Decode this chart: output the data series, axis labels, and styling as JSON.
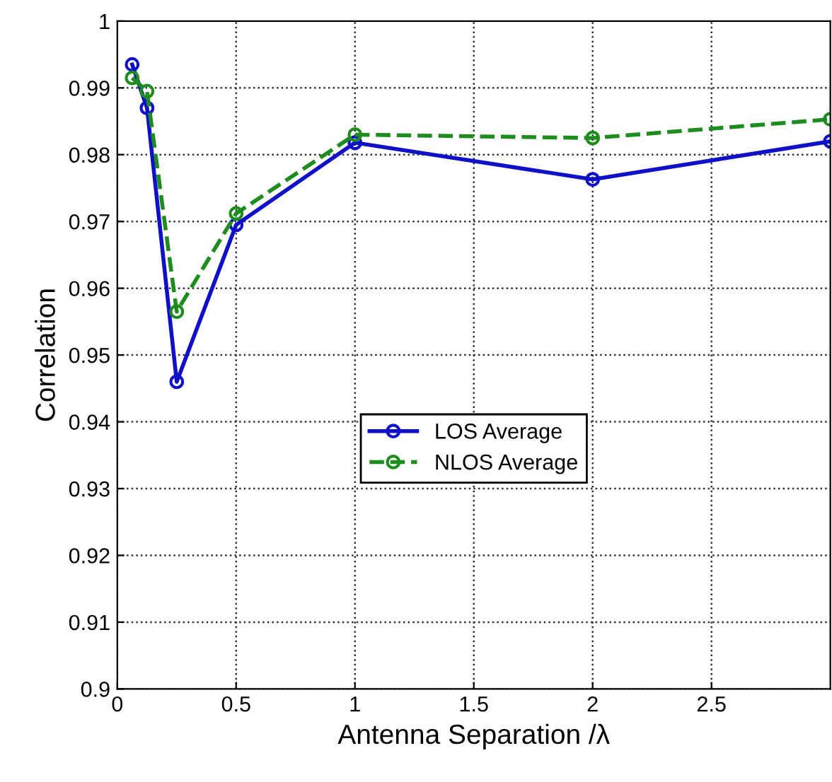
{
  "chart_data": {
    "type": "line",
    "xlabel": "Antenna Separation /λ",
    "ylabel": "Correlation",
    "x": [
      0.0625,
      0.125,
      0.25,
      0.5,
      1,
      2,
      3
    ],
    "series": [
      {
        "name": "LOS Average",
        "color": "#1010c8",
        "line_style": "solid",
        "values": [
          0.9935,
          0.987,
          0.946,
          0.9695,
          0.9818,
          0.9763,
          0.982
        ]
      },
      {
        "name": "NLOS Average",
        "color": "#1e8c1e",
        "line_style": "dashed",
        "values": [
          0.9915,
          0.9895,
          0.9565,
          0.9712,
          0.983,
          0.9825,
          0.9853
        ]
      }
    ],
    "xlim": [
      0,
      3
    ],
    "xticks": [
      0,
      0.5,
      1,
      1.5,
      2,
      2.5
    ],
    "ylim": [
      0.9,
      1
    ],
    "yticks": [
      0.9,
      0.91,
      0.92,
      0.93,
      0.94,
      0.95,
      0.96,
      0.97,
      0.98,
      0.99,
      1
    ],
    "grid": true,
    "legend": "center",
    "marker": "circle"
  }
}
